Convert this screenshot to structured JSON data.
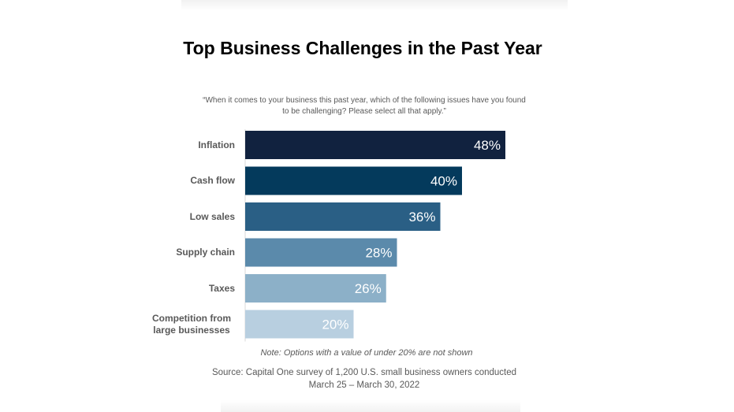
{
  "chart_data": {
    "type": "bar",
    "orientation": "horizontal",
    "title": "Top Business Challenges in the Past Year",
    "subtitle": "“When it comes to your business this past year, which of the following issues have you found to be challenging? Please select all that apply.”",
    "categories": [
      "Inflation",
      "Cash flow",
      "Low sales",
      "Supply chain",
      "Taxes",
      "Competition from large businesses"
    ],
    "values": [
      48,
      40,
      36,
      28,
      26,
      20
    ],
    "value_labels": [
      "48%",
      "40%",
      "36%",
      "28%",
      "26%",
      "20%"
    ],
    "colors": [
      "#11223f",
      "#043a5c",
      "#2a5f85",
      "#5b8aab",
      "#8cb0c8",
      "#b8cfe0"
    ],
    "xlim": [
      0,
      100
    ],
    "grid": false,
    "legend": "none"
  },
  "note": "Note: Options with a value of under 20% are not shown",
  "source": "Source: Capital One survey of 1,200 U.S. small business owners conducted March 25 – March 30, 2022"
}
